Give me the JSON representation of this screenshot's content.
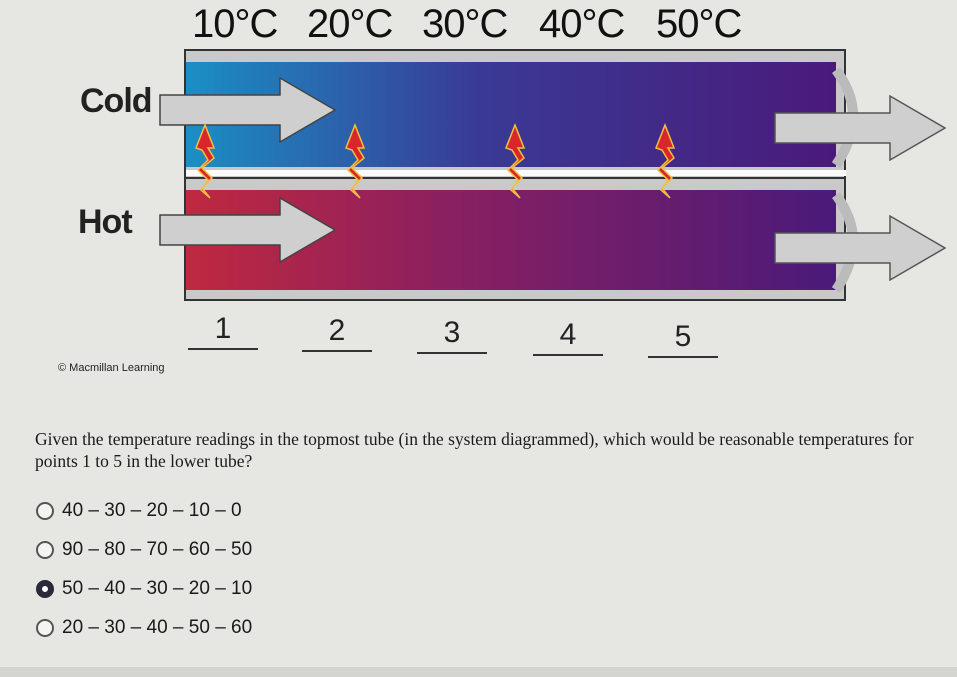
{
  "diagram": {
    "top_temperatures": [
      "10°C",
      "20°C",
      "30°C",
      "40°C",
      "50°C"
    ],
    "cold_label": "Cold",
    "hot_label": "Hot",
    "point_labels": [
      "1",
      "2",
      "3",
      "4",
      "5"
    ],
    "credit": "© Macmillan Learning",
    "colors": {
      "cold_start": "#1b8fc4",
      "cold_end": "#4a1a7a",
      "hot_start": "#c0283f",
      "hot_end": "#4a1a7a",
      "heat_arrow": "#d9262a"
    }
  },
  "question": {
    "text": "Given the temperature readings in the topmost tube (in the system diagrammed), which would be reasonable temperatures for points 1 to 5 in the lower tube?",
    "options": [
      {
        "label": "40 – 30 – 20 – 10 – 0",
        "selected": false
      },
      {
        "label": "90 – 80 – 70 – 60 – 50",
        "selected": false
      },
      {
        "label": "50 – 40 – 30 – 20 – 10",
        "selected": true
      },
      {
        "label": "20 – 30 – 40 – 50 – 60",
        "selected": false
      }
    ]
  }
}
